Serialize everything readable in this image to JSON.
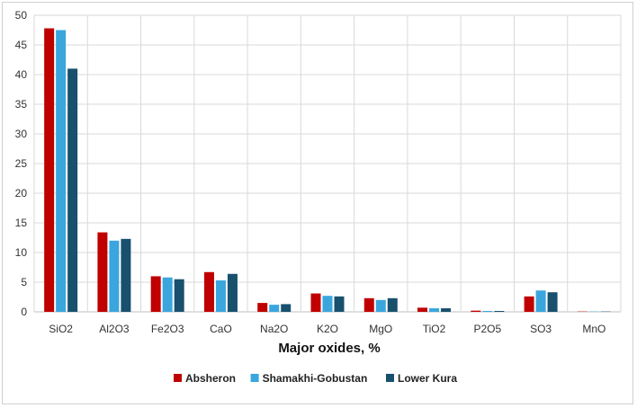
{
  "chart_data": {
    "type": "bar",
    "title": "",
    "xlabel": "Major oxides, %",
    "ylabel": "",
    "ylim": [
      0,
      50
    ],
    "yticks": [
      0,
      5,
      10,
      15,
      20,
      25,
      30,
      35,
      40,
      45,
      50
    ],
    "grid": true,
    "legend_position": "bottom",
    "categories": [
      "SiO2",
      "Al2O3",
      "Fe2O3",
      "CaO",
      "Na2O",
      "K2O",
      "MgO",
      "TiO2",
      "P2O5",
      "SO3",
      "MnO"
    ],
    "series": [
      {
        "name": "Absheron",
        "color": "#c00000",
        "values": [
          47.8,
          13.4,
          6.0,
          6.7,
          1.5,
          3.1,
          2.3,
          0.7,
          0.2,
          2.6,
          0.05
        ]
      },
      {
        "name": "Shamakhi-Gobustan",
        "color": "#3aa6dd",
        "values": [
          47.5,
          12.0,
          5.8,
          5.3,
          1.2,
          2.7,
          2.0,
          0.6,
          0.15,
          3.6,
          0.05
        ]
      },
      {
        "name": "Lower Kura",
        "color": "#18506e",
        "values": [
          41.0,
          12.3,
          5.5,
          6.4,
          1.3,
          2.6,
          2.3,
          0.6,
          0.15,
          3.3,
          0.05
        ]
      }
    ]
  }
}
